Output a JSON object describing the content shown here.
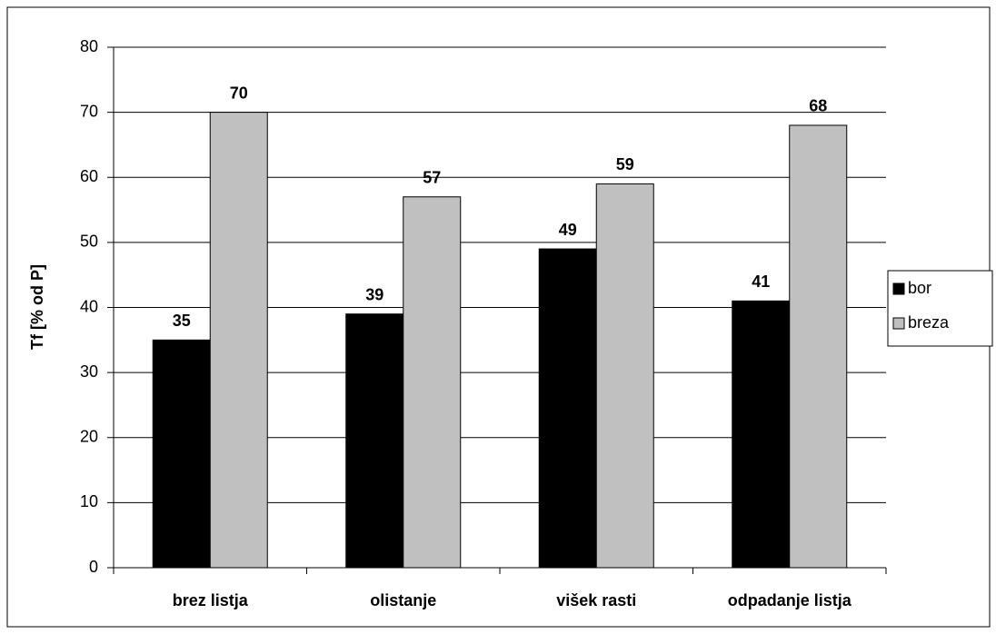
{
  "chart_data": {
    "type": "bar",
    "ylabel": "Tf [% od P]",
    "categories": [
      "brez listja",
      "olistanje",
      "višek rasti",
      "odpadanje listja"
    ],
    "series": [
      {
        "name": "bor",
        "color": "#000000",
        "values": [
          35,
          39,
          49,
          41
        ]
      },
      {
        "name": "breza",
        "color": "#c0c0c0",
        "values": [
          70,
          57,
          59,
          68
        ]
      }
    ],
    "ylim": [
      0,
      80
    ],
    "yticks": [
      0,
      10,
      20,
      30,
      40,
      50,
      60,
      70,
      80
    ],
    "grid": true,
    "legend": "right"
  }
}
